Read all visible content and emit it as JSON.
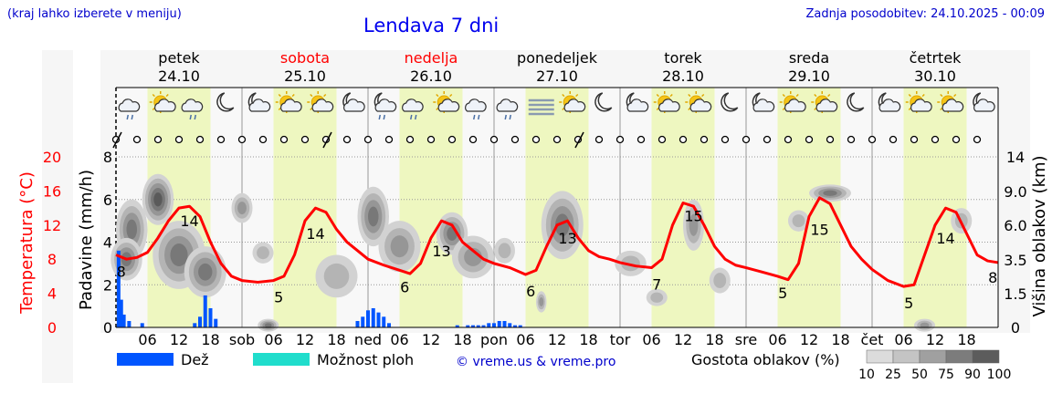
{
  "header": {
    "location_hint": "(kraj lahko izberete v meniju)",
    "title": "Lendava 7 dni",
    "updated": "Zadnja posodobitev: 24.10.2025 - 00:09"
  },
  "footer": {
    "credit": "© vreme.us & vreme.pro",
    "legend_rain": "Dež",
    "legend_shower": "Možnost ploh",
    "legend_cloud_density": "Gostota oblakov (%)",
    "cloud_scale": [
      "10",
      "25",
      "50",
      "75",
      "90",
      "100"
    ]
  },
  "colors": {
    "rain": "#0055ff",
    "shower": "#20ddcc",
    "temperature": "#ff0000",
    "daylight": "#eef7c0",
    "weekend_day": "#ff0000",
    "weekday": "#000000"
  },
  "chart_data": {
    "type": "line",
    "days": [
      {
        "name": "petek",
        "date": "24.10",
        "weekend": false
      },
      {
        "name": "sobota",
        "date": "25.10",
        "weekend": true
      },
      {
        "name": "nedelja",
        "date": "26.10",
        "weekend": true
      },
      {
        "name": "ponedeljek",
        "date": "27.10",
        "weekend": false
      },
      {
        "name": "torek",
        "date": "28.10",
        "weekend": false
      },
      {
        "name": "sreda",
        "date": "29.10",
        "weekend": false
      },
      {
        "name": "četrtek",
        "date": "30.10",
        "weekend": false
      }
    ],
    "x_tick_labels": [
      "06",
      "12",
      "18",
      "sob",
      "06",
      "12",
      "18",
      "ned",
      "06",
      "12",
      "18",
      "pon",
      "06",
      "12",
      "18",
      "tor",
      "06",
      "12",
      "18",
      "sre",
      "06",
      "12",
      "18",
      "čet",
      "06",
      "12",
      "18"
    ],
    "x_range_hours": [
      0,
      168
    ],
    "y_left_temp": {
      "label": "Temperatura (°C)",
      "ticks": [
        "0",
        "4",
        "8",
        "12",
        "16",
        "20"
      ],
      "range": [
        0,
        20
      ]
    },
    "y_left_precip": {
      "label": "Padavine (mm/h)",
      "ticks": [
        "0",
        "2",
        "4",
        "6",
        "8"
      ],
      "range": [
        0,
        8
      ]
    },
    "y_right_cloud": {
      "label": "Višina oblakov (km)",
      "ticks": [
        "0",
        "1.5",
        "3.5",
        "6.0",
        "9.0",
        "14"
      ]
    },
    "temperature_labels": [
      {
        "hour": 1,
        "value": "8"
      },
      {
        "hour": 14,
        "value": "14"
      },
      {
        "hour": 31,
        "value": "5"
      },
      {
        "hour": 38,
        "value": "14"
      },
      {
        "hour": 55,
        "value": "6"
      },
      {
        "hour": 62,
        "value": "13"
      },
      {
        "hour": 79,
        "value": "6"
      },
      {
        "hour": 86,
        "value": "13"
      },
      {
        "hour": 103,
        "value": "7"
      },
      {
        "hour": 110,
        "value": "15"
      },
      {
        "hour": 127,
        "value": "5"
      },
      {
        "hour": 134,
        "value": "15"
      },
      {
        "hour": 151,
        "value": "5"
      },
      {
        "hour": 158,
        "value": "14"
      },
      {
        "hour": 167,
        "value": "8"
      }
    ],
    "temperature_series": [
      [
        0,
        8.5
      ],
      [
        2,
        8.0
      ],
      [
        4,
        8.2
      ],
      [
        6,
        8.8
      ],
      [
        8,
        10.5
      ],
      [
        10,
        12.5
      ],
      [
        12,
        14.0
      ],
      [
        14,
        14.2
      ],
      [
        16,
        13.0
      ],
      [
        18,
        10.0
      ],
      [
        20,
        7.5
      ],
      [
        22,
        6.0
      ],
      [
        24,
        5.5
      ],
      [
        27,
        5.3
      ],
      [
        30,
        5.5
      ],
      [
        32,
        6.0
      ],
      [
        34,
        8.5
      ],
      [
        36,
        12.5
      ],
      [
        38,
        14.0
      ],
      [
        40,
        13.5
      ],
      [
        42,
        11.5
      ],
      [
        44,
        10.0
      ],
      [
        46,
        9.0
      ],
      [
        48,
        8.0
      ],
      [
        51,
        7.3
      ],
      [
        54,
        6.7
      ],
      [
        56,
        6.3
      ],
      [
        58,
        7.5
      ],
      [
        60,
        10.5
      ],
      [
        62,
        12.5
      ],
      [
        64,
        12.0
      ],
      [
        66,
        10.0
      ],
      [
        68,
        9.0
      ],
      [
        70,
        8.0
      ],
      [
        72,
        7.5
      ],
      [
        75,
        7.0
      ],
      [
        78,
        6.2
      ],
      [
        80,
        6.7
      ],
      [
        82,
        9.5
      ],
      [
        84,
        12.0
      ],
      [
        86,
        12.5
      ],
      [
        88,
        10.5
      ],
      [
        90,
        9.0
      ],
      [
        92,
        8.3
      ],
      [
        94,
        8.0
      ],
      [
        96,
        7.6
      ],
      [
        99,
        7.2
      ],
      [
        102,
        7.0
      ],
      [
        104,
        8.0
      ],
      [
        106,
        12.0
      ],
      [
        108,
        14.6
      ],
      [
        110,
        14.2
      ],
      [
        112,
        12.0
      ],
      [
        114,
        9.5
      ],
      [
        116,
        8.0
      ],
      [
        118,
        7.3
      ],
      [
        120,
        7.0
      ],
      [
        123,
        6.5
      ],
      [
        126,
        6.0
      ],
      [
        128,
        5.6
      ],
      [
        130,
        7.5
      ],
      [
        132,
        13.0
      ],
      [
        134,
        15.2
      ],
      [
        136,
        14.5
      ],
      [
        138,
        12.0
      ],
      [
        140,
        9.5
      ],
      [
        142,
        8.0
      ],
      [
        144,
        6.8
      ],
      [
        147,
        5.5
      ],
      [
        150,
        4.8
      ],
      [
        152,
        5.0
      ],
      [
        154,
        8.5
      ],
      [
        156,
        12.0
      ],
      [
        158,
        14.0
      ],
      [
        160,
        13.5
      ],
      [
        162,
        11.0
      ],
      [
        164,
        8.5
      ],
      [
        166,
        7.8
      ],
      [
        168,
        7.6
      ]
    ],
    "rain_bars": [
      [
        0.5,
        3.6
      ],
      [
        1.0,
        1.3
      ],
      [
        1.5,
        0.6
      ],
      [
        2.5,
        0.3
      ],
      [
        5,
        0.2
      ],
      [
        15,
        0.2
      ],
      [
        16,
        0.5
      ],
      [
        17,
        1.5
      ],
      [
        18,
        0.9
      ],
      [
        19,
        0.4
      ],
      [
        46,
        0.3
      ],
      [
        47,
        0.5
      ],
      [
        48,
        0.8
      ],
      [
        49,
        0.9
      ],
      [
        50,
        0.7
      ],
      [
        51,
        0.5
      ],
      [
        52,
        0.2
      ],
      [
        65,
        0.1
      ],
      [
        67,
        0.1
      ],
      [
        68,
        0.1
      ],
      [
        69,
        0.1
      ],
      [
        70,
        0.1
      ],
      [
        71,
        0.2
      ],
      [
        72,
        0.2
      ],
      [
        73,
        0.3
      ],
      [
        74,
        0.3
      ],
      [
        75,
        0.2
      ],
      [
        76,
        0.1
      ],
      [
        77,
        0.1
      ]
    ],
    "daylight_hours": [
      [
        6,
        18
      ],
      [
        30,
        42
      ],
      [
        54,
        66
      ],
      [
        78,
        90
      ],
      [
        102,
        114
      ],
      [
        126,
        138
      ],
      [
        150,
        162
      ]
    ],
    "cloud_blobs": [
      {
        "h": 3,
        "y": 4.6,
        "rx": 3,
        "ry": 1.4,
        "d": 0.85
      },
      {
        "h": 2,
        "y": 3.2,
        "rx": 3,
        "ry": 1.0,
        "d": 0.7
      },
      {
        "h": 8,
        "y": 6.0,
        "rx": 3,
        "ry": 1.2,
        "d": 0.9
      },
      {
        "h": 12,
        "y": 3.4,
        "rx": 5,
        "ry": 1.6,
        "d": 0.85
      },
      {
        "h": 17,
        "y": 2.6,
        "rx": 4,
        "ry": 1.2,
        "d": 0.7
      },
      {
        "h": 24,
        "y": 5.6,
        "rx": 2,
        "ry": 0.7,
        "d": 0.5
      },
      {
        "h": 28,
        "y": 3.5,
        "rx": 2,
        "ry": 0.5,
        "d": 0.35
      },
      {
        "h": 42,
        "y": 2.4,
        "rx": 4,
        "ry": 1.0,
        "d": 0.45
      },
      {
        "h": 49,
        "y": 5.2,
        "rx": 3,
        "ry": 1.4,
        "d": 0.8
      },
      {
        "h": 54,
        "y": 3.8,
        "rx": 4,
        "ry": 1.2,
        "d": 0.65
      },
      {
        "h": 64,
        "y": 4.4,
        "rx": 3,
        "ry": 1.0,
        "d": 0.7
      },
      {
        "h": 68,
        "y": 3.3,
        "rx": 4,
        "ry": 1.0,
        "d": 0.55
      },
      {
        "h": 74,
        "y": 3.6,
        "rx": 2,
        "ry": 0.6,
        "d": 0.4
      },
      {
        "h": 85,
        "y": 4.8,
        "rx": 4,
        "ry": 1.6,
        "d": 0.8
      },
      {
        "h": 81,
        "y": 1.2,
        "rx": 1,
        "ry": 0.5,
        "d": 0.6
      },
      {
        "h": 98,
        "y": 3.0,
        "rx": 3,
        "ry": 0.6,
        "d": 0.45
      },
      {
        "h": 110,
        "y": 4.8,
        "rx": 2,
        "ry": 1.2,
        "d": 0.55
      },
      {
        "h": 115,
        "y": 2.2,
        "rx": 2,
        "ry": 0.6,
        "d": 0.4
      },
      {
        "h": 136,
        "y": 6.3,
        "rx": 4,
        "ry": 0.4,
        "d": 0.75
      },
      {
        "h": 130,
        "y": 5.0,
        "rx": 2,
        "ry": 0.5,
        "d": 0.4
      },
      {
        "h": 161,
        "y": 5.0,
        "rx": 2,
        "ry": 0.6,
        "d": 0.45
      },
      {
        "h": 103,
        "y": 1.4,
        "rx": 2,
        "ry": 0.4,
        "d": 0.3
      },
      {
        "h": 29,
        "y": 0.1,
        "rx": 2,
        "ry": 0.3,
        "d": 0.8
      },
      {
        "h": 154,
        "y": 0.1,
        "rx": 2,
        "ry": 0.3,
        "d": 0.6
      }
    ],
    "weather_icons": [
      "cloud-rain-icon",
      "sun-cloud-icon",
      "cloud-rain-icon",
      "moon-icon",
      "moon-cloud-icon",
      "sun-cloud-icon",
      "sun-cloud-icon",
      "moon-cloud-icon",
      "moon-cloud-rain-icon",
      "cloud-rain-icon",
      "sun-cloud-icon",
      "cloud-rain-icon",
      "cloud-rain-icon",
      "fog-icon",
      "sun-cloud-icon",
      "moon-icon",
      "moon-cloud-icon",
      "sun-cloud-icon",
      "sun-cloud-icon",
      "moon-icon",
      "moon-cloud-icon",
      "sun-cloud-icon",
      "sun-cloud-icon",
      "moon-icon",
      "moon-cloud-icon",
      "sun-cloud-icon",
      "sun-cloud-icon",
      "moon-cloud-icon"
    ],
    "wind_marks_count": 42,
    "wind_barb_hours": [
      0,
      40,
      88
    ]
  }
}
